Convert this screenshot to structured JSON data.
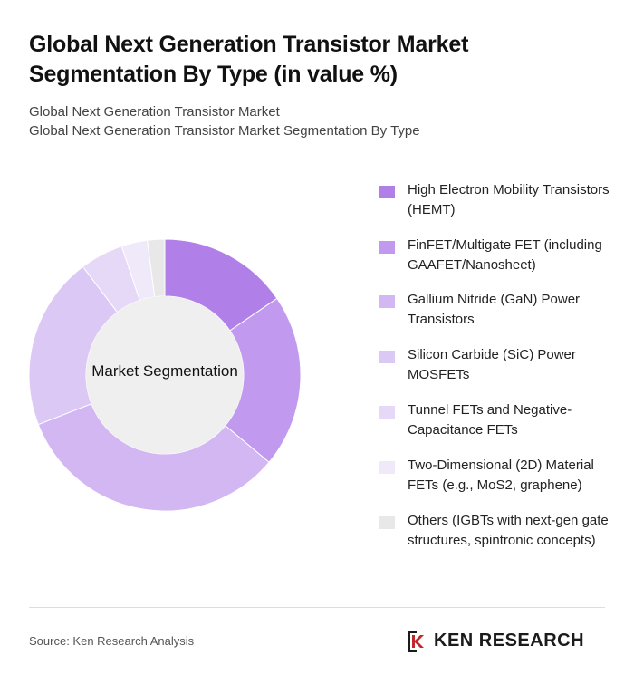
{
  "header": {
    "title": "Global Next Generation Transistor Market Segmentation By Type (in value %)",
    "subtitle_line1": "Global Next Generation Transistor Market",
    "subtitle_line2": "Global Next Generation Transistor Market Segmentation By Type"
  },
  "chart_data": {
    "type": "pie",
    "donut": true,
    "center_label": "Market Segmentation",
    "unit": "%",
    "legend_position": "right",
    "categories": [
      "High Electron Mobility Transistors (HEMT)",
      "FinFET/Multigate FET (including GAAFET/Nanosheet)",
      "Gallium Nitride (GaN) Power Transistors",
      "Silicon Carbide (SiC) Power MOSFETs",
      "Tunnel FETs and Negative-Capacitance FETs",
      "Two-Dimensional (2D) Material FETs (e.g., MoS2, graphene)",
      "Others (IGBTs with next-gen gate structures, spintronic concepts)"
    ],
    "values": [
      15,
      20,
      32,
      20,
      5,
      3,
      2
    ],
    "colors": [
      "#b07fe8",
      "#c199ee",
      "#d2b7f2",
      "#dcc8f4",
      "#e6d9f7",
      "#f0e9fa",
      "#e8e8e8"
    ]
  },
  "footer": {
    "source": "Source: Ken Research Analysis",
    "logo_text": "KEN RESEARCH"
  }
}
